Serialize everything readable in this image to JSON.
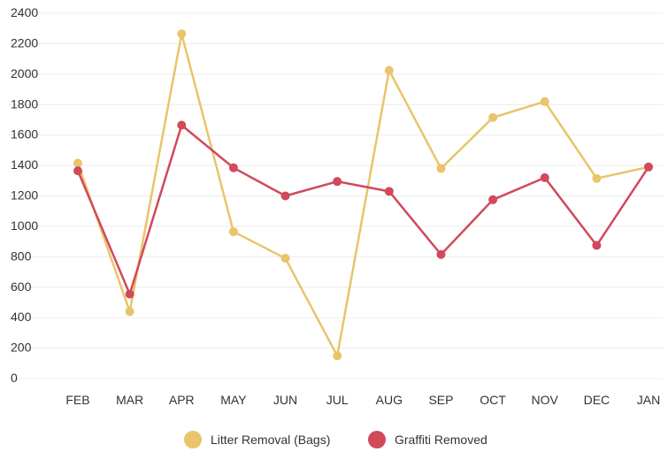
{
  "chart_data": {
    "type": "line",
    "title": "",
    "xlabel": "",
    "ylabel": "",
    "categories": [
      "FEB",
      "MAR",
      "APR",
      "MAY",
      "JUN",
      "JUL",
      "AUG",
      "SEP",
      "OCT",
      "NOV",
      "DEC",
      "JAN"
    ],
    "yticks": [
      "0",
      "200",
      "400",
      "600",
      "800",
      "1000",
      "1200",
      "1400",
      "1600",
      "1800",
      "2000",
      "2200",
      "2400"
    ],
    "ylim": [
      0,
      2400
    ],
    "grid": true,
    "legend_position": "bottom",
    "series": [
      {
        "name": "Litter Removal (Bags)",
        "color": "#E9C46A",
        "values": [
          1415,
          440,
          2265,
          965,
          790,
          150,
          2025,
          1380,
          1715,
          1820,
          1315,
          1390
        ]
      },
      {
        "name": "Graffiti Removed",
        "color": "#D1495B",
        "values": [
          1365,
          555,
          1665,
          1385,
          1200,
          1295,
          1230,
          815,
          1175,
          1320,
          875,
          1390
        ]
      }
    ]
  }
}
